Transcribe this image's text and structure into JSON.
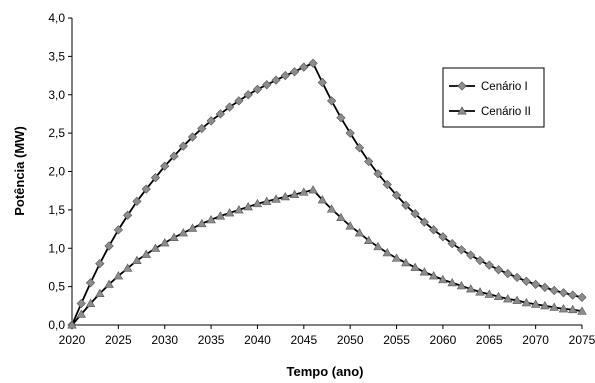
{
  "chart_data": {
    "type": "line",
    "title": "",
    "xlabel": "Tempo (ano)",
    "ylabel": "Potência (MW)",
    "xlim": [
      2020,
      2075
    ],
    "ylim": [
      0,
      4
    ],
    "x_ticks": [
      2020,
      2025,
      2030,
      2035,
      2040,
      2045,
      2050,
      2055,
      2060,
      2065,
      2070,
      2075
    ],
    "x_tick_labels": [
      "2020",
      "2025",
      "2030",
      "2035",
      "2040",
      "2045",
      "2050",
      "2055",
      "2060",
      "2065",
      "2070",
      "2075"
    ],
    "y_ticks": [
      0,
      0.5,
      1,
      1.5,
      2,
      2.5,
      3,
      3.5,
      4
    ],
    "y_tick_labels": [
      "0,0",
      "0,5",
      "1,0",
      "1,5",
      "2,0",
      "2,5",
      "3,0",
      "3,5",
      "4,0"
    ],
    "grid": false,
    "legend_position": "right",
    "x": [
      2020,
      2021,
      2022,
      2023,
      2024,
      2025,
      2026,
      2027,
      2028,
      2029,
      2030,
      2031,
      2032,
      2033,
      2034,
      2035,
      2036,
      2037,
      2038,
      2039,
      2040,
      2041,
      2042,
      2043,
      2044,
      2045,
      2046,
      2047,
      2048,
      2049,
      2050,
      2051,
      2052,
      2053,
      2054,
      2055,
      2056,
      2057,
      2058,
      2059,
      2060,
      2061,
      2062,
      2063,
      2064,
      2065,
      2066,
      2067,
      2068,
      2069,
      2070,
      2071,
      2072,
      2073,
      2074,
      2075
    ],
    "series": [
      {
        "name": "Cenário I",
        "marker": "diamond",
        "color": "#000000",
        "marker_color": "#8c8c8c",
        "values": [
          0,
          0.28,
          0.55,
          0.8,
          1.03,
          1.24,
          1.43,
          1.61,
          1.77,
          1.92,
          2.07,
          2.2,
          2.33,
          2.45,
          2.56,
          2.66,
          2.75,
          2.84,
          2.92,
          3.0,
          3.07,
          3.13,
          3.19,
          3.25,
          3.3,
          3.36,
          3.41,
          3.16,
          2.92,
          2.7,
          2.5,
          2.31,
          2.13,
          1.97,
          1.83,
          1.69,
          1.56,
          1.45,
          1.34,
          1.24,
          1.15,
          1.06,
          0.98,
          0.91,
          0.84,
          0.78,
          0.72,
          0.67,
          0.62,
          0.57,
          0.53,
          0.49,
          0.45,
          0.42,
          0.39,
          0.36
        ]
      },
      {
        "name": "Cenário II",
        "marker": "triangle",
        "color": "#000000",
        "marker_color": "#8c8c8c",
        "values": [
          0,
          0.14,
          0.28,
          0.41,
          0.53,
          0.64,
          0.74,
          0.84,
          0.92,
          1.0,
          1.07,
          1.14,
          1.2,
          1.26,
          1.32,
          1.37,
          1.42,
          1.46,
          1.5,
          1.54,
          1.58,
          1.61,
          1.64,
          1.67,
          1.7,
          1.73,
          1.76,
          1.63,
          1.51,
          1.4,
          1.29,
          1.2,
          1.1,
          1.02,
          0.94,
          0.87,
          0.81,
          0.75,
          0.69,
          0.64,
          0.59,
          0.55,
          0.51,
          0.47,
          0.43,
          0.4,
          0.37,
          0.34,
          0.32,
          0.29,
          0.27,
          0.25,
          0.23,
          0.21,
          0.2,
          0.18
        ]
      }
    ]
  }
}
